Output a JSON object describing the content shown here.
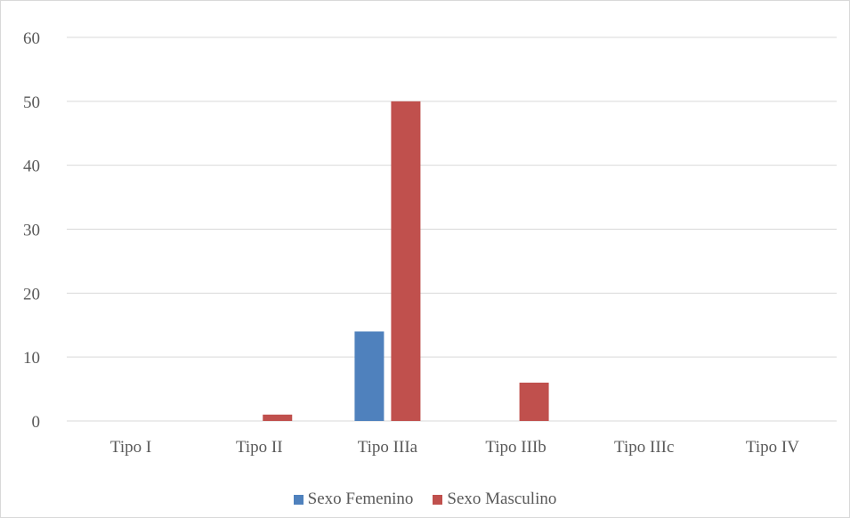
{
  "chart_data": {
    "type": "bar",
    "title": "",
    "xlabel": "",
    "ylabel": "",
    "categories": [
      "Tipo I",
      "Tipo II",
      "Tipo IIIa",
      "Tipo IIIb",
      "Tipo IIIc",
      "Tipo IV"
    ],
    "series": [
      {
        "name": "Sexo Femenino",
        "values": [
          0,
          0,
          14,
          0,
          0,
          0
        ],
        "color": "#4f81bd"
      },
      {
        "name": "Sexo Masculino",
        "values": [
          0,
          1,
          50,
          6,
          0,
          0
        ],
        "color": "#c0504d"
      }
    ],
    "yticks": [
      "0",
      "10",
      "20",
      "30",
      "40",
      "50",
      "60"
    ],
    "ylim": [
      0,
      60
    ],
    "grid": true,
    "gridColor": "#d9d9d9",
    "legendPlacement": "bottom"
  }
}
